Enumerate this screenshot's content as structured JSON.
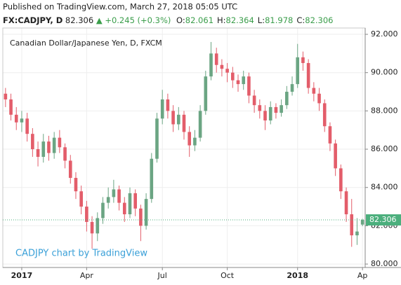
{
  "header": {
    "published": "Published on TradingView.com, March 27, 2018 05:05 UTC",
    "symbol": "FX:CADJPY, D",
    "price": "82.306",
    "change": "▲ +0.245 (+0.3%)",
    "ohlc": [
      {
        "key": "O:",
        "value": "82.061"
      },
      {
        "key": "H:",
        "value": "82.364"
      },
      {
        "key": "L:",
        "value": "81.978"
      },
      {
        "key": "C:",
        "value": "82.306"
      }
    ]
  },
  "chart_data": {
    "type": "candlestick",
    "title": "Canadian Dollar/Japanese Yen, D, FXCM",
    "watermark": "CADJPY chart by TradingView",
    "categories": [
      null,
      null,
      null,
      "2017",
      null,
      null,
      null,
      null,
      null,
      null,
      null,
      null,
      null,
      null,
      null,
      "Apr",
      null,
      null,
      null,
      null,
      null,
      null,
      null,
      null,
      null,
      null,
      null,
      null,
      null,
      "Jul",
      null,
      null,
      null,
      null,
      null,
      null,
      null,
      null,
      null,
      null,
      null,
      "Oct",
      null,
      null,
      null,
      null,
      null,
      null,
      null,
      null,
      null,
      null,
      null,
      null,
      "2018",
      null,
      null,
      null,
      null,
      null,
      null,
      null,
      null,
      null,
      null,
      null,
      "Ap"
    ],
    "open": [
      88.9,
      88.6,
      87.8,
      87.4,
      87.6,
      86.8,
      86.0,
      85.6,
      86.4,
      85.8,
      86.6,
      86.1,
      85.4,
      84.5,
      83.8,
      83.0,
      82.2,
      81.6,
      82.4,
      83.2,
      83.5,
      83.9,
      83.2,
      82.6,
      83.7,
      82.9,
      82.0,
      83.4,
      85.5,
      87.6,
      88.6,
      88.0,
      87.3,
      87.8,
      86.9,
      86.2,
      86.6,
      88.0,
      89.8,
      91.0,
      90.4,
      90.2,
      90.0,
      89.6,
      89.4,
      89.8,
      88.8,
      88.3,
      88.0,
      87.5,
      88.2,
      87.9,
      88.3,
      89.0,
      89.4,
      90.8,
      90.5,
      89.2,
      88.9,
      88.4,
      87.2,
      86.3,
      85.0,
      83.8,
      82.6,
      81.5,
      82.061
    ],
    "high": [
      89.2,
      88.9,
      88.2,
      88.0,
      87.9,
      87.1,
      86.4,
      86.8,
      86.7,
      86.9,
      87.0,
      86.3,
      85.7,
      84.8,
      84.1,
      83.3,
      82.5,
      82.7,
      83.5,
      84.0,
      84.4,
      84.1,
      83.5,
      84.0,
      83.9,
      83.1,
      83.7,
      85.8,
      87.9,
      89.1,
      88.9,
      88.3,
      88.2,
      88.0,
      87.2,
      87.0,
      88.3,
      90.1,
      91.6,
      91.3,
      90.7,
      90.5,
      90.3,
      89.9,
      90.1,
      90.0,
      89.1,
      88.6,
      88.3,
      88.5,
      88.4,
      88.6,
      89.3,
      89.8,
      91.5,
      91.1,
      90.7,
      89.5,
      89.2,
      88.6,
      87.4,
      86.5,
      85.2,
      84.0,
      83.4,
      82.4,
      82.364
    ],
    "low": [
      88.2,
      87.5,
      87.0,
      86.9,
      86.4,
      85.6,
      85.1,
      85.3,
      85.4,
      85.5,
      85.8,
      85.0,
      84.2,
      83.4,
      82.6,
      81.7,
      80.8,
      81.2,
      82.1,
      82.9,
      83.2,
      82.8,
      82.2,
      82.4,
      82.5,
      81.2,
      81.8,
      83.2,
      85.3,
      87.3,
      87.6,
      86.9,
      87.0,
      86.5,
      85.6,
      85.9,
      86.4,
      87.8,
      89.6,
      90.0,
      89.8,
      89.5,
      89.2,
      89.0,
      89.1,
      88.4,
      87.9,
      87.6,
      87.0,
      87.3,
      87.6,
      87.7,
      88.1,
      88.8,
      89.2,
      90.1,
      88.9,
      88.5,
      88.0,
      86.9,
      85.9,
      84.6,
      83.4,
      82.2,
      80.9,
      81.0,
      81.978
    ],
    "close": [
      88.6,
      87.8,
      87.4,
      87.6,
      86.8,
      86.0,
      85.6,
      86.4,
      85.8,
      86.6,
      86.1,
      85.4,
      84.5,
      83.8,
      83.0,
      82.2,
      81.6,
      82.4,
      83.2,
      83.5,
      83.9,
      83.2,
      82.6,
      83.7,
      82.9,
      82.0,
      83.4,
      85.5,
      87.6,
      88.6,
      88.0,
      87.3,
      87.8,
      86.9,
      86.2,
      86.6,
      88.0,
      89.8,
      91.0,
      90.4,
      90.2,
      90.0,
      89.6,
      89.4,
      89.8,
      88.8,
      88.3,
      88.0,
      87.5,
      88.2,
      87.9,
      88.3,
      89.0,
      89.4,
      90.8,
      90.5,
      89.2,
      88.9,
      88.4,
      87.2,
      86.3,
      85.0,
      83.8,
      82.6,
      81.5,
      81.7,
      82.306
    ],
    "up_color": "#6ba583",
    "down_color": "#e35d6a",
    "last_color": "#4caf7d",
    "last_price": 82.306,
    "ylim": [
      79.82,
      92.33
    ],
    "yticks": [
      {
        "value": 80,
        "label": "80.000"
      },
      {
        "value": 82,
        "label": "82.000"
      },
      {
        "value": 84,
        "label": "84.000"
      },
      {
        "value": 86,
        "label": "86.000"
      },
      {
        "value": 88,
        "label": "88.000"
      },
      {
        "value": 90,
        "label": "90.000"
      },
      {
        "value": 92,
        "label": "92.000"
      }
    ],
    "grid": true
  }
}
